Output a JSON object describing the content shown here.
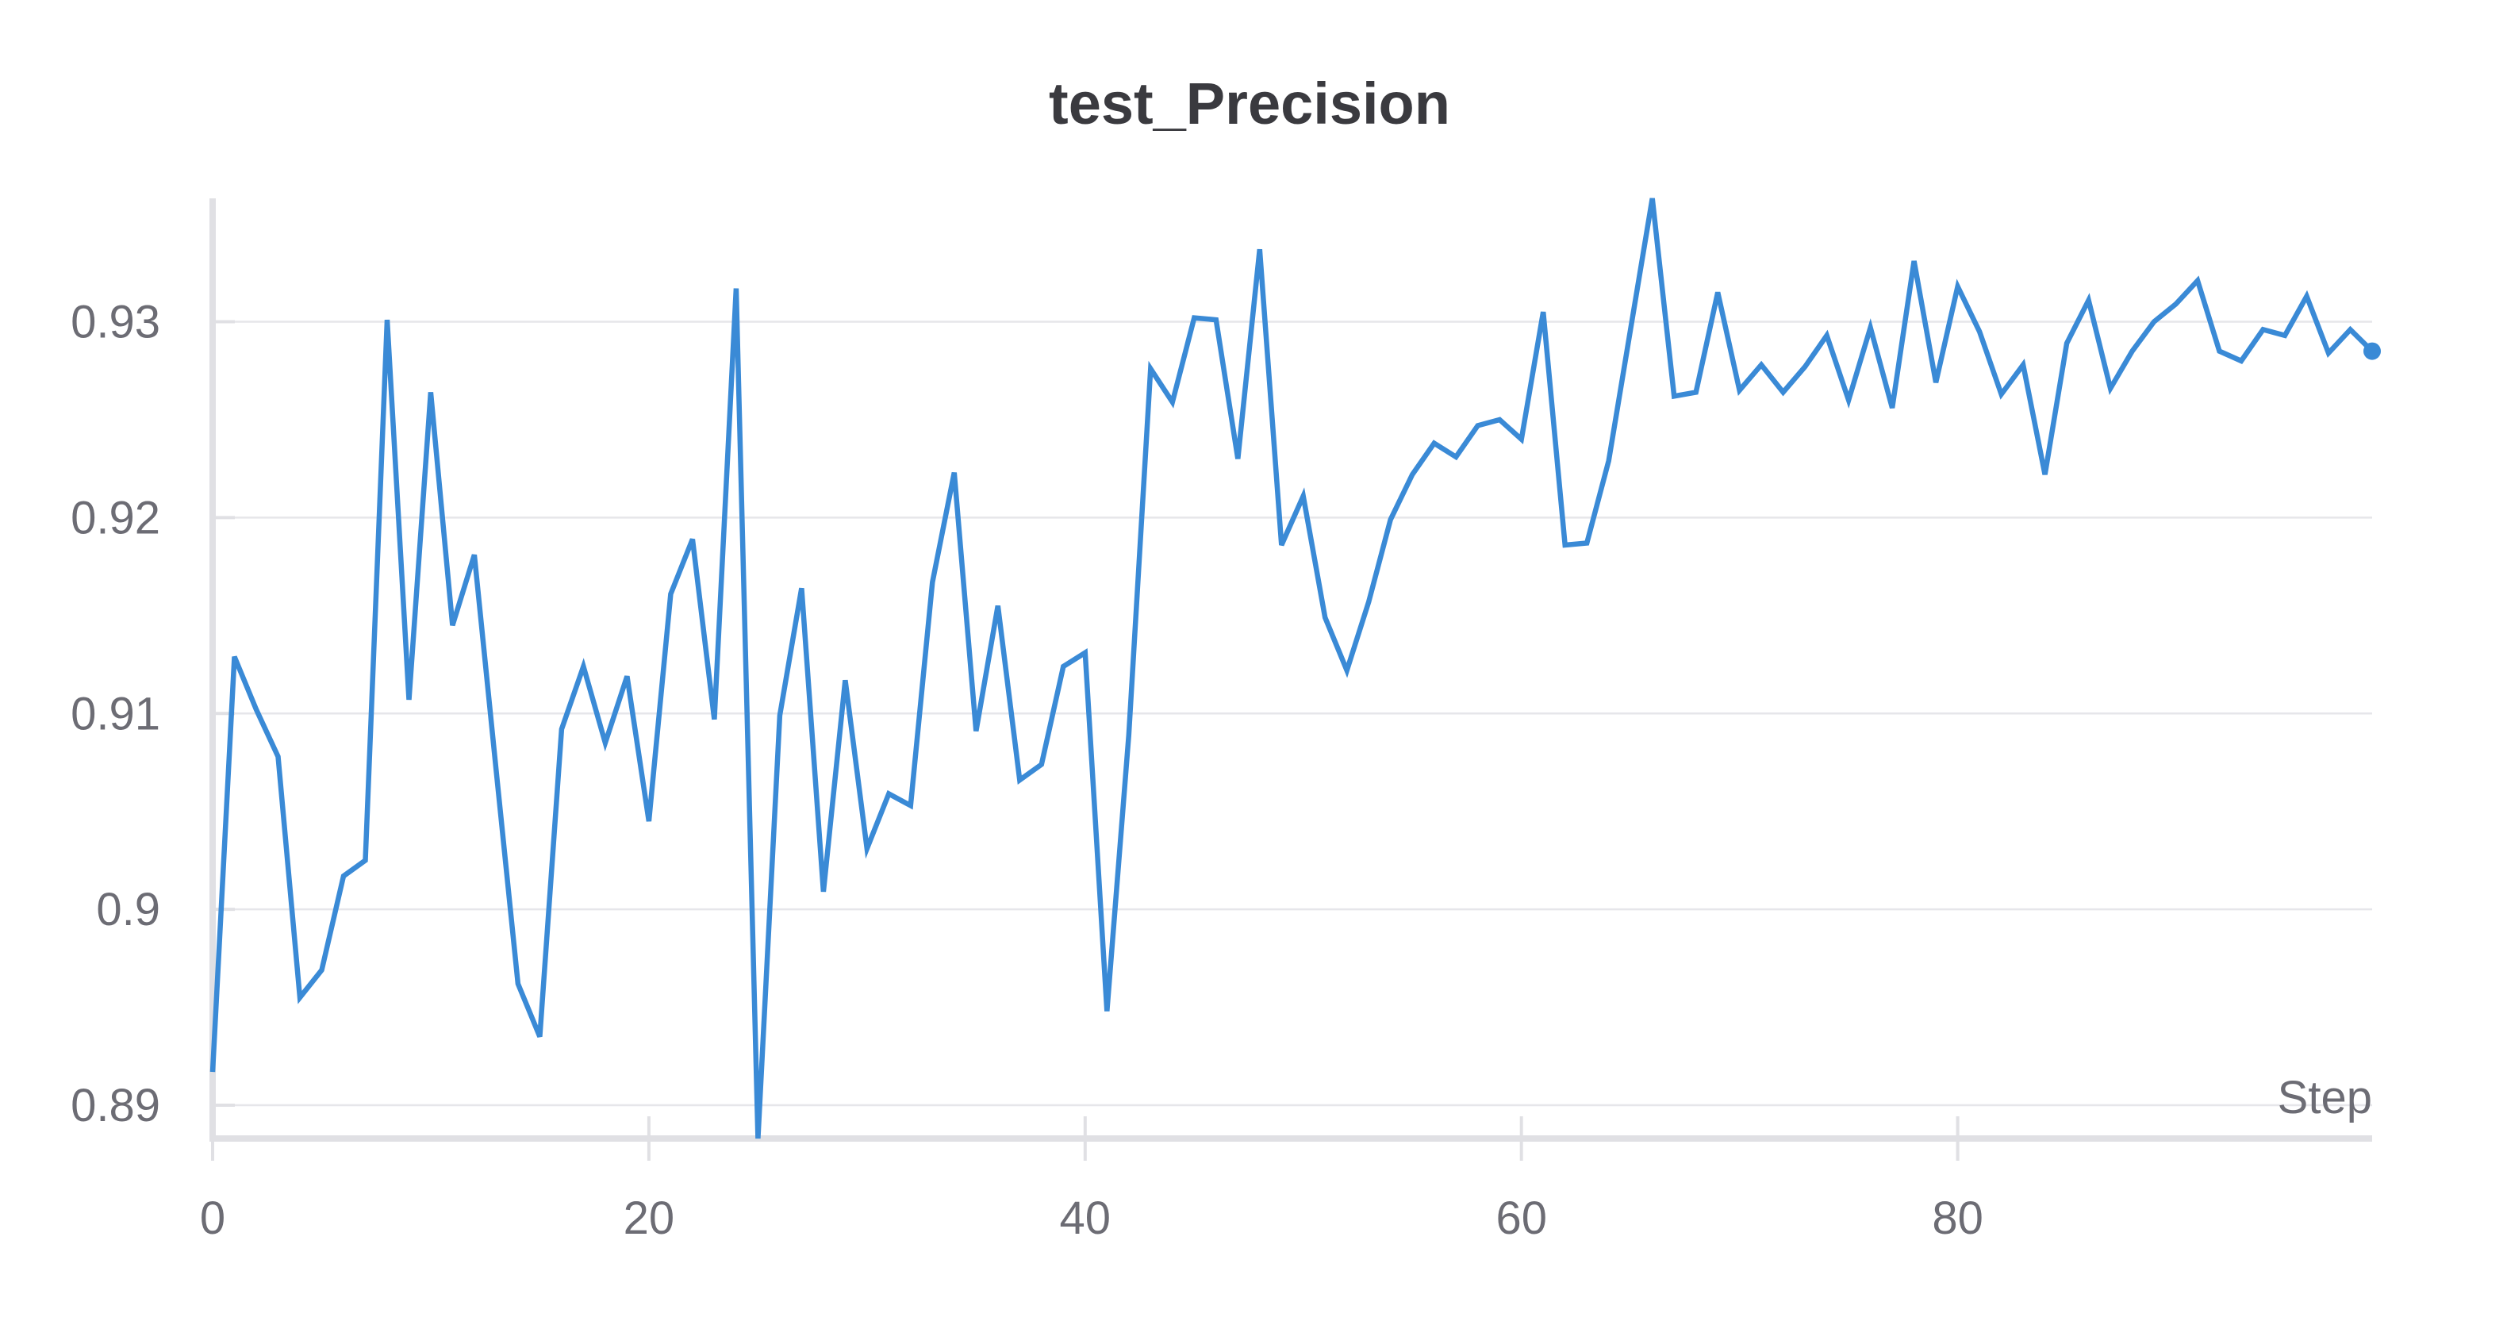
{
  "chart_data": {
    "type": "line",
    "title": "test_Precision",
    "xlabel": "Step",
    "ylabel": "",
    "xlim": [
      0,
      99
    ],
    "ylim": [
      0.8883,
      0.9363
    ],
    "x_ticks": [
      0,
      20,
      40,
      60,
      80
    ],
    "x_tick_labels": [
      "0",
      "20",
      "40",
      "60",
      "80"
    ],
    "y_ticks": [
      0.89,
      0.9,
      0.91,
      0.92,
      0.93
    ],
    "y_tick_labels": [
      "0.89",
      "0.9",
      "0.91",
      "0.92",
      "0.93"
    ],
    "grid": true,
    "line_color": "#3a8ad6",
    "series": [
      {
        "x": [
          0,
          1,
          2,
          3,
          4,
          5,
          6,
          7,
          8,
          9,
          10,
          11,
          12,
          13,
          14,
          15,
          16,
          17,
          18,
          19,
          20,
          21,
          22,
          23,
          24,
          25,
          26,
          27,
          28,
          29,
          30,
          31,
          32,
          33,
          34,
          35,
          36,
          37,
          38,
          39,
          40,
          41,
          42,
          43,
          44,
          45,
          46,
          47,
          48,
          49,
          50,
          51,
          52,
          53,
          54,
          55,
          56,
          57,
          58,
          59,
          60,
          61,
          62,
          63,
          64,
          65,
          66,
          67,
          68,
          69,
          70,
          71,
          72,
          73,
          74,
          75,
          76,
          77,
          78,
          79,
          80,
          81,
          82,
          83,
          84,
          85,
          86,
          87,
          88,
          89,
          90,
          91,
          92,
          93,
          94,
          95,
          96,
          97,
          98,
          99
        ],
        "values": [
          0.8917,
          0.9129,
          0.9102,
          0.9078,
          0.8955,
          0.8969,
          0.9017,
          0.9025,
          0.9301,
          0.9107,
          0.9264,
          0.9145,
          0.9181,
          0.9071,
          0.8962,
          0.8935,
          0.9092,
          0.9124,
          0.9085,
          0.9119,
          0.9045,
          0.9161,
          0.9189,
          0.9097,
          0.9317,
          0.8883,
          0.9099,
          0.9164,
          0.9009,
          0.9117,
          0.9031,
          0.9059,
          0.9053,
          0.9167,
          0.9223,
          0.9091,
          0.9155,
          0.9066,
          0.9074,
          0.9124,
          0.9131,
          0.8948,
          0.9089,
          0.9276,
          0.9259,
          0.9302,
          0.9301,
          0.923,
          0.9337,
          0.9186,
          0.9211,
          0.9149,
          0.9122,
          0.9157,
          0.9199,
          0.9222,
          0.9238,
          0.9231,
          0.9247,
          0.925,
          0.924,
          0.9305,
          0.9186,
          0.9187,
          0.9229,
          0.9296,
          0.9363,
          0.9262,
          0.9264,
          0.9315,
          0.9265,
          0.9278,
          0.9264,
          0.9277,
          0.9293,
          0.926,
          0.9297,
          0.9256,
          0.9331,
          0.9269,
          0.9318,
          0.9295,
          0.9263,
          0.9278,
          0.9222,
          0.9289,
          0.9311,
          0.9266,
          0.9285,
          0.93,
          0.9309,
          0.9321,
          0.9285,
          0.928,
          0.9296,
          0.9293,
          0.9313,
          0.9284,
          0.9296,
          0.9285
        ]
      }
    ]
  }
}
